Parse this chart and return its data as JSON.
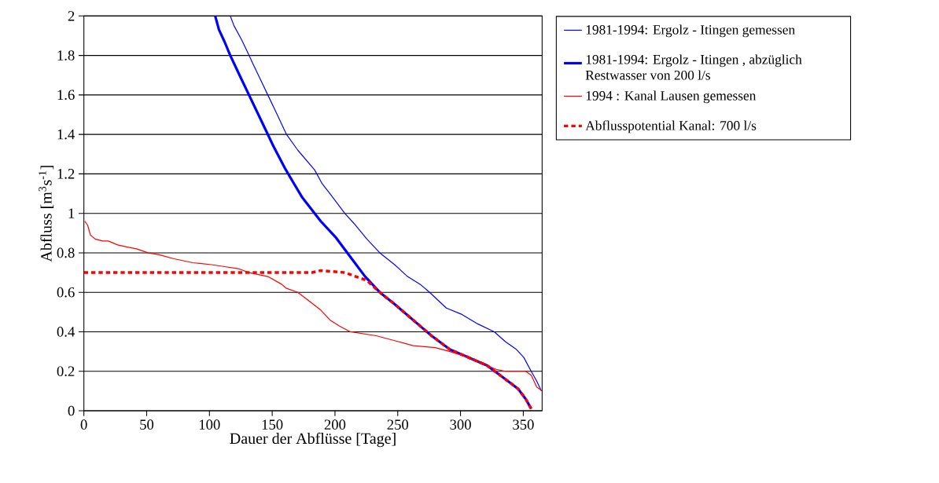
{
  "chart_data": {
    "type": "line",
    "xlabel": "Dauer der Abflüsse [Tage]",
    "ylabel": "Abfluss [m$^{3}$s$^{-1}$]",
    "xlim": [
      0,
      365
    ],
    "xticks": [
      0,
      50,
      100,
      150,
      200,
      250,
      300,
      350
    ],
    "ylim": [
      0,
      2
    ],
    "yticks": [
      0,
      0.2,
      0.4,
      0.6,
      0.8,
      1,
      1.2,
      1.4,
      1.6,
      1.8,
      2
    ],
    "grid": "y",
    "legend": "right",
    "series": [
      {
        "name": "1981-1994: Ergolz - Itingen gemessen",
        "color": "#0000ff",
        "x": [
          116.6,
          119.6,
          125.6,
          131.6,
          134.5,
          142,
          146.5,
          154,
          161.4,
          170.4,
          183.8,
          189.8,
          196,
          207.8,
          215,
          225.4,
          235.7,
          247.5,
          257.8,
          268,
          275.4,
          288.7,
          300.4,
          313.7,
          326.9,
          335.7,
          344.6,
          350.4,
          356.3,
          360.7,
          364.4
        ],
        "values": [
          2.0,
          1.95,
          1.88,
          1.8,
          1.76,
          1.66,
          1.6,
          1.5,
          1.4,
          1.32,
          1.22,
          1.15,
          1.1,
          1.0,
          0.95,
          0.87,
          0.8,
          0.74,
          0.68,
          0.64,
          0.6,
          0.52,
          0.49,
          0.44,
          0.4,
          0.35,
          0.31,
          0.27,
          0.2,
          0.15,
          0.1
        ]
      },
      {
        "name": "1981-1994: Ergolz - Itingen , abzüglich Restwasser von 200 l/s",
        "color": "#0000ff",
        "x": [
          104.6,
          107.6,
          112,
          116.6,
          124,
          131.5,
          142,
          151,
          160,
          167.4,
          174,
          188.7,
          200.4,
          212.2,
          224,
          235.7,
          247.5,
          262.2,
          276.9,
          291.6,
          306.3,
          321,
          335.7,
          346,
          351.9,
          356.3
        ],
        "values": [
          2.0,
          1.93,
          1.87,
          1.8,
          1.7,
          1.6,
          1.46,
          1.34,
          1.23,
          1.15,
          1.08,
          0.96,
          0.88,
          0.78,
          0.68,
          0.6,
          0.54,
          0.46,
          0.38,
          0.31,
          0.27,
          0.23,
          0.16,
          0.11,
          0.06,
          0.01
        ]
      },
      {
        "name": "1994 : Kanal Lausen gemessen",
        "color": "#ff0000",
        "x": [
          0.7,
          3,
          5.2,
          9,
          15,
          19.4,
          27,
          34,
          42,
          51,
          60,
          71.7,
          86.7,
          101.6,
          112,
          123,
          131.5,
          146.5,
          157.7,
          161.4,
          170.4,
          180.6,
          188.7,
          196,
          203.4,
          212.2,
          222.5,
          232.8,
          250.4,
          262.2,
          279.8,
          291.6,
          306.3,
          321,
          328.4,
          335.7,
          351.9,
          356.3,
          360.7,
          365
        ],
        "values": [
          0.96,
          0.94,
          0.89,
          0.87,
          0.86,
          0.86,
          0.84,
          0.83,
          0.82,
          0.8,
          0.79,
          0.77,
          0.75,
          0.74,
          0.73,
          0.72,
          0.7,
          0.68,
          0.64,
          0.62,
          0.6,
          0.55,
          0.51,
          0.46,
          0.43,
          0.4,
          0.39,
          0.38,
          0.35,
          0.33,
          0.32,
          0.3,
          0.27,
          0.23,
          0.21,
          0.2,
          0.2,
          0.18,
          0.12,
          0.1
        ]
      },
      {
        "name": "Abflusspotential Kanal:  700 l/s",
        "color": "#ff0000",
        "line_style": "dashed",
        "x": [
          0,
          50,
          100,
          150,
          181.6,
          188.7,
          207.8,
          216.6,
          225.4,
          235.7,
          247.5,
          262.2,
          276.9,
          291.6,
          306.3,
          321,
          335.7,
          346,
          351.9,
          356.3
        ],
        "values": [
          0.7,
          0.7,
          0.7,
          0.7,
          0.7,
          0.71,
          0.7,
          0.68,
          0.66,
          0.6,
          0.54,
          0.46,
          0.38,
          0.31,
          0.27,
          0.23,
          0.16,
          0.11,
          0.06,
          0.01
        ]
      }
    ]
  }
}
